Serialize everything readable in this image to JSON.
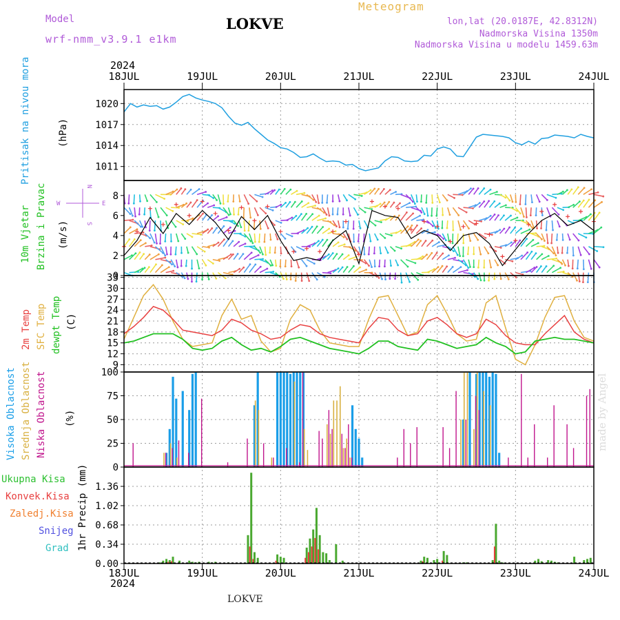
{
  "header": {
    "model_label": "Model",
    "model_name": "wrf-nmm_v3.9.1  e1km",
    "station": "LOKVE",
    "title": "Meteogram",
    "lonlat": "lon,lat (20.0187E, 42.8312N)",
    "altitude": "Nadmorska Visina 1350m",
    "model_altitude": "Nadmorska Visina u modelu 1459.63m"
  },
  "footer": {
    "station": "LOKVE",
    "watermark": "made by Angel"
  },
  "time_axis": {
    "year": "2024",
    "labels": [
      "18JUL",
      "19JUL",
      "20JUL",
      "21JUL",
      "22JUL",
      "23JUL",
      "24JUL"
    ],
    "range_hours": [
      0,
      144
    ]
  },
  "colors": {
    "pressure": "#1f9fe0",
    "t2m": "#e84040",
    "sfc": "#e0b040",
    "dew": "#20c020",
    "high_cloud": "#1a9ee8",
    "mid_cloud": "#d8b040",
    "low_cloud": "#c0148c",
    "total_precip": "#4aa830",
    "conv_precip": "#e83c3c"
  },
  "chart_data": [
    {
      "type": "line",
      "panel": "pressure",
      "ylabel_left": "Pritisak na nivou mora",
      "ylabel_unit": "(hPa)",
      "yticks": [
        1011,
        1014,
        1017,
        1020
      ],
      "ylim": [
        1009.0,
        1022.0
      ],
      "x": [
        0,
        2,
        4,
        6,
        8,
        10,
        12,
        14,
        16,
        18,
        20,
        22,
        24,
        26,
        28,
        30,
        32,
        34,
        36,
        38,
        40,
        42,
        44,
        46,
        48,
        50,
        52,
        54,
        56,
        58,
        60,
        62,
        64,
        66,
        68,
        70,
        72,
        74,
        76,
        78,
        80,
        82,
        84,
        86,
        88,
        90,
        92,
        94,
        96,
        98,
        100,
        102,
        104,
        106,
        108,
        110,
        112,
        114,
        116,
        118,
        120,
        122,
        124,
        126,
        128,
        130,
        132,
        134,
        136,
        138,
        140,
        142,
        144
      ],
      "series": [
        {
          "name": "",
          "values": [
            1018.8,
            1020.0,
            1019.5,
            1019.8,
            1019.6,
            1019.7,
            1019.2,
            1019.5,
            1020.2,
            1021.0,
            1021.3,
            1020.8,
            1020.5,
            1020.3,
            1020.0,
            1019.4,
            1018.2,
            1017.2,
            1016.9,
            1017.3,
            1016.4,
            1015.6,
            1014.8,
            1014.3,
            1013.7,
            1013.5,
            1013.0,
            1012.3,
            1012.4,
            1012.8,
            1012.2,
            1011.7,
            1011.8,
            1011.7,
            1011.2,
            1011.3,
            1010.7,
            1010.4,
            1010.6,
            1010.8,
            1011.8,
            1012.4,
            1012.3,
            1011.8,
            1011.7,
            1011.8,
            1012.6,
            1012.5,
            1013.5,
            1013.8,
            1013.5,
            1012.5,
            1012.4,
            1013.8,
            1015.2,
            1015.6,
            1015.5,
            1015.4,
            1015.3,
            1015.1,
            1014.4,
            1014.1,
            1014.6,
            1014.2,
            1015.0,
            1015.1,
            1015.5,
            1015.4,
            1015.3,
            1015.1,
            1015.6,
            1015.3,
            1015.1
          ]
        }
      ]
    },
    {
      "type": "line",
      "panel": "wind",
      "ylabel_left": "10m Vjetar",
      "ylabel_left2": "Brzina i Pravac",
      "ylabel_unit": "(m/s)",
      "compass": {
        "n": "N",
        "s": "S",
        "w": "W",
        "e": "E"
      },
      "yticks": [
        0,
        2,
        4,
        6,
        8
      ],
      "ylim": [
        0,
        9.5
      ],
      "x": [
        0,
        4,
        8,
        12,
        16,
        20,
        24,
        28,
        32,
        36,
        40,
        44,
        48,
        52,
        56,
        60,
        64,
        68,
        72,
        76,
        80,
        84,
        88,
        92,
        96,
        100,
        104,
        108,
        112,
        116,
        120,
        124,
        128,
        132,
        136,
        140,
        144
      ],
      "series": [
        {
          "name": "",
          "values": [
            2.0,
            3.5,
            5.8,
            4.2,
            6.2,
            5.1,
            6.5,
            5.3,
            3.6,
            5.9,
            4.6,
            6.0,
            3.5,
            1.5,
            1.8,
            1.5,
            3.5,
            4.5,
            1.2,
            6.5,
            6.0,
            5.8,
            3.7,
            4.5,
            4.0,
            2.5,
            4.0,
            4.3,
            3.2,
            1.0,
            2.6,
            4.2,
            5.5,
            6.2,
            5.0,
            5.5,
            4.5
          ]
        }
      ]
    },
    {
      "type": "line",
      "panel": "temperature",
      "ylabel_left": "2m Temp",
      "ylabel_left2": "SFC Temp",
      "ylabel_left3": "dewpt Temp",
      "ylabel_unit": "(C)",
      "yticks": [
        9,
        12,
        15,
        18,
        21,
        24,
        27,
        30,
        33
      ],
      "ylim": [
        7.0,
        33.5
      ],
      "x": [
        0,
        3,
        6,
        9,
        12,
        15,
        18,
        21,
        24,
        27,
        30,
        33,
        36,
        39,
        42,
        45,
        48,
        51,
        54,
        57,
        60,
        63,
        66,
        69,
        72,
        75,
        78,
        81,
        84,
        87,
        90,
        93,
        96,
        99,
        102,
        105,
        108,
        111,
        114,
        117,
        120,
        123,
        126,
        129,
        132,
        135,
        138,
        141,
        144
      ],
      "series": [
        {
          "name": "",
          "values": [
            17.5,
            19.5,
            22.0,
            25.0,
            24.0,
            21.5,
            18.5,
            18.0,
            17.5,
            17.0,
            18.5,
            21.5,
            20.5,
            18.5,
            17.5,
            16.0,
            16.5,
            18.5,
            20.0,
            19.5,
            17.5,
            16.5,
            16.0,
            15.5,
            15.0,
            19.0,
            22.0,
            21.5,
            18.5,
            17.0,
            17.5,
            21.0,
            22.0,
            20.0,
            17.5,
            16.5,
            17.5,
            21.5,
            20.0,
            17.0,
            15.0,
            14.5,
            14.5,
            17.5,
            20.0,
            22.5,
            18.0,
            16.0,
            15.0
          ]
        },
        {
          "name": "",
          "values": [
            16.0,
            22.0,
            28.0,
            31.0,
            27.0,
            21.0,
            16.0,
            14.0,
            14.5,
            15.0,
            22.5,
            27.0,
            21.5,
            22.5,
            15.5,
            12.5,
            13.5,
            21.5,
            25.5,
            24.0,
            18.5,
            15.0,
            14.5,
            14.0,
            14.0,
            21.5,
            27.5,
            28.0,
            22.5,
            17.0,
            18.0,
            25.5,
            28.0,
            23.0,
            17.5,
            15.5,
            16.0,
            26.0,
            28.0,
            19.0,
            10.5,
            9.0,
            14.5,
            22.0,
            27.5,
            28.0,
            21.0,
            16.5,
            15.5
          ]
        },
        {
          "name": "",
          "values": [
            15.0,
            15.5,
            16.5,
            17.5,
            17.5,
            17.5,
            16.0,
            13.5,
            13.0,
            13.5,
            15.5,
            16.5,
            14.5,
            13.0,
            13.5,
            12.5,
            14.0,
            16.0,
            16.5,
            15.5,
            14.5,
            13.5,
            13.0,
            12.5,
            12.0,
            13.5,
            15.5,
            15.5,
            14.0,
            13.5,
            13.0,
            16.0,
            15.5,
            14.5,
            13.5,
            14.0,
            14.5,
            16.5,
            15.0,
            14.0,
            12.0,
            12.5,
            15.5,
            16.0,
            16.5,
            16.0,
            16.0,
            15.5,
            15.0
          ]
        }
      ]
    },
    {
      "type": "bar",
      "panel": "cloud",
      "ylabel_left": "Visoka Oblacnost",
      "ylabel_left2": "Srednja Oblacnost",
      "ylabel_left3": "Niska Oblacnost",
      "ylabel_unit": "(%)",
      "yticks": [
        0,
        25,
        50,
        75,
        100
      ],
      "ylim": [
        0,
        100
      ],
      "series": [
        {
          "name": "",
          "x": [
            13,
            14,
            15,
            16,
            18,
            20,
            21,
            22,
            40,
            41,
            47,
            48,
            49,
            50,
            51,
            52,
            53,
            54,
            55,
            70,
            71,
            72,
            73,
            104,
            106,
            108,
            109,
            110,
            111,
            112,
            113,
            114,
            115
          ],
          "values": [
            15,
            40,
            95,
            72,
            80,
            60,
            98,
            100,
            65,
            100,
            100,
            100,
            100,
            100,
            98,
            100,
            100,
            100,
            100,
            65,
            40,
            30,
            10,
            50,
            100,
            98,
            100,
            100,
            100,
            95,
            100,
            98,
            15
          ]
        },
        {
          "name": "",
          "x": [
            12,
            14,
            16,
            40,
            41,
            45,
            52,
            55,
            56,
            62,
            63,
            64,
            65,
            66,
            67,
            68,
            69,
            103,
            104,
            105,
            107,
            108,
            110,
            112
          ],
          "values": [
            15,
            25,
            10,
            70,
            60,
            10,
            90,
            40,
            18,
            45,
            35,
            70,
            70,
            85,
            20,
            30,
            10,
            50,
            100,
            100,
            40,
            100,
            80,
            65
          ]
        },
        {
          "name": "",
          "x": [
            3,
            13,
            15,
            17,
            20,
            24,
            32,
            38,
            43,
            46,
            50,
            54,
            55,
            60,
            61,
            63,
            64,
            67,
            68,
            69,
            70,
            84,
            86,
            88,
            90,
            98,
            100,
            102,
            105,
            108,
            109,
            118,
            122,
            124,
            126,
            130,
            132,
            136,
            138,
            142,
            143
          ],
          "values": [
            25,
            15,
            20,
            28,
            15,
            72,
            5,
            30,
            25,
            10,
            20,
            5,
            100,
            38,
            30,
            60,
            40,
            35,
            20,
            45,
            10,
            10,
            40,
            25,
            42,
            42,
            20,
            80,
            50,
            75,
            60,
            10,
            98,
            10,
            45,
            10,
            65,
            45,
            20,
            75,
            82
          ]
        }
      ]
    },
    {
      "type": "bar",
      "panel": "precip",
      "ylabel_legend": [
        "Ukupna Kisa",
        "Konvek.Kisa",
        "Zaledj.Kisa",
        "Snijeg",
        "Grad"
      ],
      "legend_colors": [
        "#2cc030",
        "#e84040",
        "#f08030",
        "#5050e0",
        "#30c0c0"
      ],
      "ylabel_unit": "1hr Precip (mm)",
      "yticks": [
        0,
        0.34,
        0.68,
        1.02,
        1.36
      ],
      "ylim": [
        0,
        1.7
      ],
      "series": [
        {
          "name": "",
          "x": [
            11,
            12,
            13,
            14,
            15,
            17,
            20,
            21,
            22,
            23,
            26,
            27,
            28,
            32,
            38,
            39,
            40,
            41,
            47,
            48,
            49,
            56,
            57,
            58,
            59,
            60,
            61,
            62,
            63,
            65,
            67,
            91,
            92,
            93,
            95,
            96,
            98,
            99,
            104,
            105,
            113,
            114,
            115,
            116,
            126,
            127,
            128,
            130,
            131,
            132,
            133,
            138,
            141,
            142,
            143
          ],
          "values": [
            0.02,
            0.05,
            0.08,
            0.06,
            0.12,
            0.05,
            0.05,
            0.03,
            0.02,
            0.03,
            0.03,
            0.02,
            0.03,
            0.02,
            0.5,
            1.6,
            0.2,
            0.1,
            0.16,
            0.12,
            0.1,
            0.28,
            0.44,
            0.6,
            0.98,
            0.5,
            0.2,
            0.18,
            0.06,
            0.34,
            0.05,
            0.05,
            0.12,
            0.1,
            0.06,
            0.08,
            0.22,
            0.15,
            0.02,
            0.02,
            0.06,
            0.7,
            0.05,
            0.02,
            0.05,
            0.08,
            0.04,
            0.06,
            0.05,
            0.03,
            0.02,
            0.12,
            0.06,
            0.08,
            0.1
          ]
        },
        {
          "name": "",
          "x": [
            11,
            14,
            15,
            39,
            40,
            47,
            56,
            57,
            58,
            59,
            60,
            92,
            98,
            114
          ],
          "values": [
            0.01,
            0.03,
            0.04,
            0.3,
            0.08,
            0.05,
            0.1,
            0.2,
            0.3,
            0.45,
            0.25,
            0.04,
            0.05,
            0.3
          ]
        }
      ]
    }
  ]
}
